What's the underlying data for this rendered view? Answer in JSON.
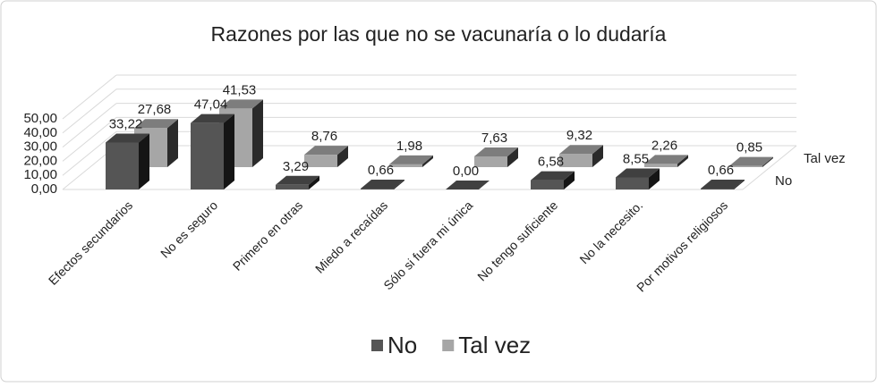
{
  "chart_data": {
    "type": "bar3d",
    "title": "Razones por las que no se vacunaría o lo dudaría",
    "categories": [
      "Efectos secundarios",
      "No es seguro",
      "Primero en otras",
      "Miedo a recaídas",
      "Sólo si fuera mi única",
      "No tengo suficiente",
      "No la necesito.",
      "Por motivos religiosos"
    ],
    "series": [
      {
        "name": "No",
        "color": "#555555",
        "values": [
          33.22,
          47.04,
          3.29,
          0.66,
          0.0,
          6.58,
          8.55,
          0.66
        ],
        "value_labels": [
          "33,22",
          "47,04",
          "3,29",
          "0,66",
          "0,00",
          "6,58",
          "8,55",
          "0,66"
        ]
      },
      {
        "name": "Tal vez",
        "color": "#a6a6a6",
        "values": [
          27.68,
          41.53,
          8.76,
          1.98,
          7.63,
          9.32,
          2.26,
          0.85
        ],
        "value_labels": [
          "27,68",
          "41,53",
          "8,76",
          "1,98",
          "7,63",
          "9,32",
          "2,26",
          "0,85"
        ]
      }
    ],
    "ylim": [
      0,
      50
    ],
    "yticks": [
      {
        "value": 0,
        "label": "0,00"
      },
      {
        "value": 10,
        "label": "10,00"
      },
      {
        "value": 20,
        "label": "20,00"
      },
      {
        "value": 30,
        "label": "30,00"
      },
      {
        "value": 40,
        "label": "40,00"
      },
      {
        "value": 50,
        "label": "50,00"
      }
    ],
    "grid": true,
    "legend": "bottom"
  }
}
